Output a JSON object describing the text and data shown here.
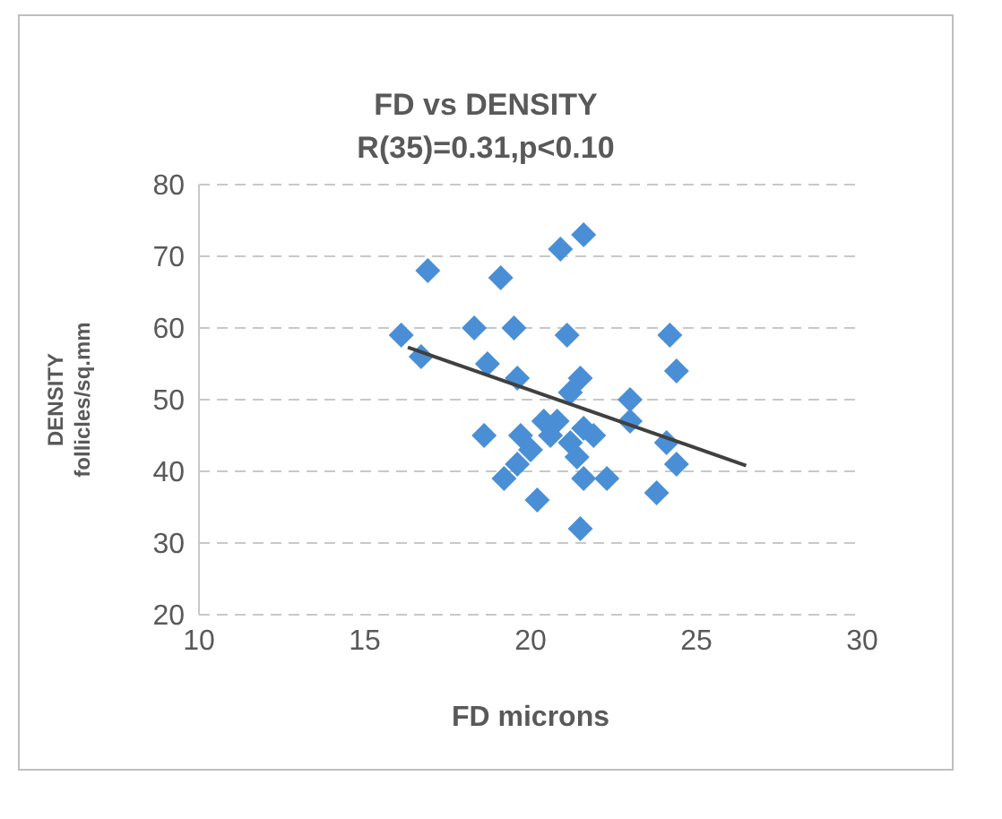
{
  "chart_data": {
    "type": "scatter",
    "title": "FD vs DENSITY",
    "subtitle": "R(35)=0.31,p<0.10",
    "xlabel": "FD microns",
    "ylabel": "DENSITY\nfollicles/sq.mm",
    "xlim": [
      10,
      30
    ],
    "xticks": [
      10,
      15,
      20,
      25,
      30
    ],
    "ylim": [
      20,
      80
    ],
    "yticks": [
      20,
      30,
      40,
      50,
      60,
      70,
      80
    ],
    "grid": "y",
    "legend": false,
    "marker": "diamond",
    "series": [
      {
        "color": "#4a8fd6",
        "x": [
          16.9,
          19.1,
          20.9,
          21.6,
          16.1,
          16.7,
          18.3,
          19.5,
          21.1,
          24.2,
          24.4,
          18.7,
          19.6,
          21.5,
          23.0,
          23.0,
          20.8,
          21.6,
          18.6,
          19.7,
          20.0,
          19.2,
          19.6,
          21.6,
          22.3,
          24.1,
          24.4,
          23.8,
          20.2,
          21.5,
          21.2,
          20.4,
          20.6,
          21.9,
          21.2,
          21.4
        ],
        "values": [
          68,
          67,
          71,
          73,
          59,
          56,
          60,
          60,
          59,
          59,
          54,
          55,
          53,
          53,
          50,
          47,
          47,
          46,
          45,
          45,
          43,
          39,
          41,
          39,
          39,
          44,
          41,
          37,
          36,
          32,
          44,
          47,
          45,
          45,
          51,
          42
        ]
      },
      {
        "type": "line",
        "color": "#404040",
        "marker": "none",
        "x": [
          16.3,
          26.5
        ],
        "values": [
          57.3,
          40.8
        ]
      }
    ]
  }
}
